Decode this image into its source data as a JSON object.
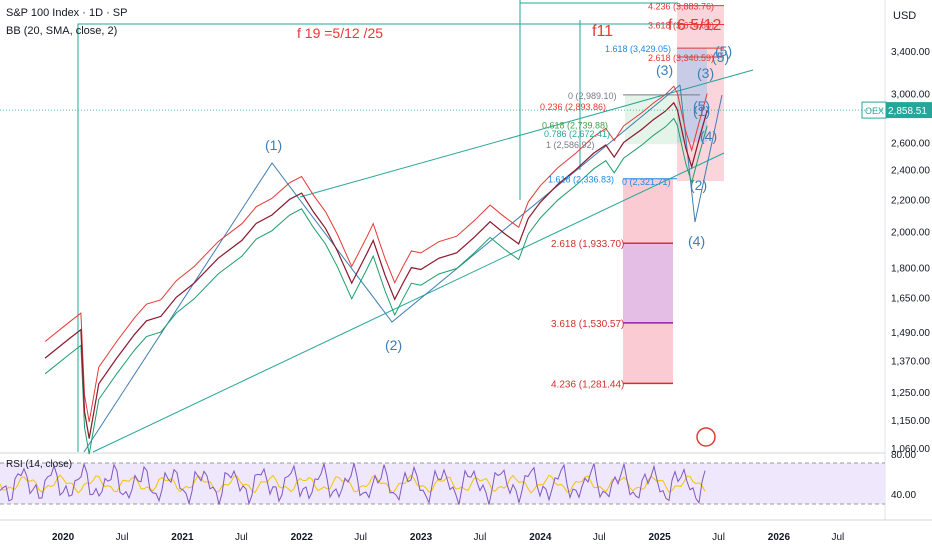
{
  "header": {
    "title": "S&P 100 Index · 1D · SP",
    "indicator": "BB (20, SMA, close, 2)",
    "rsi_label": "RSI (14, close)"
  },
  "currency": "USD",
  "price_badge": {
    "ticker": "OEX",
    "value": "2,858.51"
  },
  "colors": {
    "price": "#8e1a2b",
    "bb_upper": "#e53935",
    "bb_lower": "#1b9e6a",
    "bb_basis": "#2962ff",
    "trend": "#26a69a",
    "wave": "#3d7eb5",
    "fib": "#e53935",
    "fib_zone": "#f7a1b1",
    "fib_zone2": "#d5b6f0",
    "rsi": "#7e57c2",
    "rsi_signal": "#f5c400"
  },
  "chart_data": {
    "type": "line",
    "title": "S&P 100 Index · 1D · SP",
    "ylabel": "USD",
    "yscale": "log",
    "ylim": [
      1000,
      4700
    ],
    "x_ticks": [
      "2020",
      "Jul",
      "2021",
      "Jul",
      "2022",
      "Jul",
      "2023",
      "Jul",
      "2024",
      "Jul",
      "2025",
      "Jul",
      "2026",
      "Jul"
    ],
    "y_ticks": [
      "3,400.00",
      "3,000.00",
      "2,600.00",
      "2,400.00",
      "2,200.00",
      "2,000.00",
      "1,800.00",
      "1,650.00",
      "1,490.00",
      "1,370.00",
      "1,250.00",
      "1,150.00",
      "1,060.00"
    ],
    "y_tick_values": [
      3400,
      3000,
      2600,
      2400,
      2200,
      2000,
      1800,
      1650,
      1490,
      1370,
      1250,
      1150,
      1060
    ],
    "series": [
      {
        "name": "S&P 100 Index",
        "points": [
          [
            2019.85,
            1380
          ],
          [
            2020.05,
            1460
          ],
          [
            2020.15,
            1500
          ],
          [
            2020.18,
            1180
          ],
          [
            2020.22,
            1090
          ],
          [
            2020.3,
            1280
          ],
          [
            2020.45,
            1380
          ],
          [
            2020.6,
            1480
          ],
          [
            2020.7,
            1540
          ],
          [
            2020.82,
            1560
          ],
          [
            2020.95,
            1650
          ],
          [
            2021.1,
            1720
          ],
          [
            2021.3,
            1850
          ],
          [
            2021.5,
            1950
          ],
          [
            2021.62,
            2050
          ],
          [
            2021.75,
            2100
          ],
          [
            2021.9,
            2200
          ],
          [
            2022.0,
            2240
          ],
          [
            2022.1,
            2120
          ],
          [
            2022.2,
            2020
          ],
          [
            2022.3,
            1890
          ],
          [
            2022.42,
            1720
          ],
          [
            2022.55,
            1880
          ],
          [
            2022.6,
            1950
          ],
          [
            2022.7,
            1760
          ],
          [
            2022.78,
            1640
          ],
          [
            2022.85,
            1720
          ],
          [
            2022.92,
            1800
          ],
          [
            2023.0,
            1790
          ],
          [
            2023.15,
            1850
          ],
          [
            2023.3,
            1880
          ],
          [
            2023.45,
            1970
          ],
          [
            2023.58,
            2060
          ],
          [
            2023.7,
            1990
          ],
          [
            2023.82,
            1930
          ],
          [
            2023.9,
            2080
          ],
          [
            2024.0,
            2180
          ],
          [
            2024.15,
            2300
          ],
          [
            2024.3,
            2400
          ],
          [
            2024.45,
            2520
          ],
          [
            2024.55,
            2580
          ],
          [
            2024.62,
            2490
          ],
          [
            2024.7,
            2600
          ],
          [
            2024.85,
            2700
          ],
          [
            2024.95,
            2780
          ],
          [
            2025.05,
            2850
          ],
          [
            2025.12,
            2920
          ],
          [
            2025.15,
            2860
          ],
          [
            2025.22,
            2560
          ],
          [
            2025.27,
            2420
          ],
          [
            2025.33,
            2620
          ],
          [
            2025.4,
            2858
          ]
        ]
      }
    ],
    "bollinger": {
      "period": 20,
      "ma": "SMA",
      "source": "close",
      "stddev": 2
    },
    "rsi": {
      "period": 14,
      "source": "close",
      "levels": [
        "80.00",
        "40.00"
      ]
    },
    "annotations": {
      "wave_labels": [
        "(1)",
        "(2)",
        "(3)",
        "(4)",
        "(5)",
        "(2)",
        "(3)",
        "(4)",
        "(5)",
        "(5)",
        "(1)"
      ],
      "red_texts": [
        "f 19 =5/12 /25",
        "f11",
        "f 6 5/12"
      ],
      "fib_top": [
        "4.236 (3,883.76)",
        "3.618 (3,674.60)",
        "2.618 (3,340.59)"
      ],
      "fib_blue": [
        "1.618 (3,429.05)"
      ],
      "fib_mid": [
        "0 (2,989.10)",
        "0.236 (2,893.86)",
        "0.618 (2,739.88)",
        "0.786 (2,672.41)",
        "1 (2,586.92)"
      ],
      "fib_mid_blue": [
        "1.618 (2,336.83)",
        "0 (2,321.71)"
      ],
      "fib_lower": [
        "2.618 (1,933.70)",
        "3.618 (1,530.57)",
        "4.236 (1,281.44)"
      ]
    }
  }
}
